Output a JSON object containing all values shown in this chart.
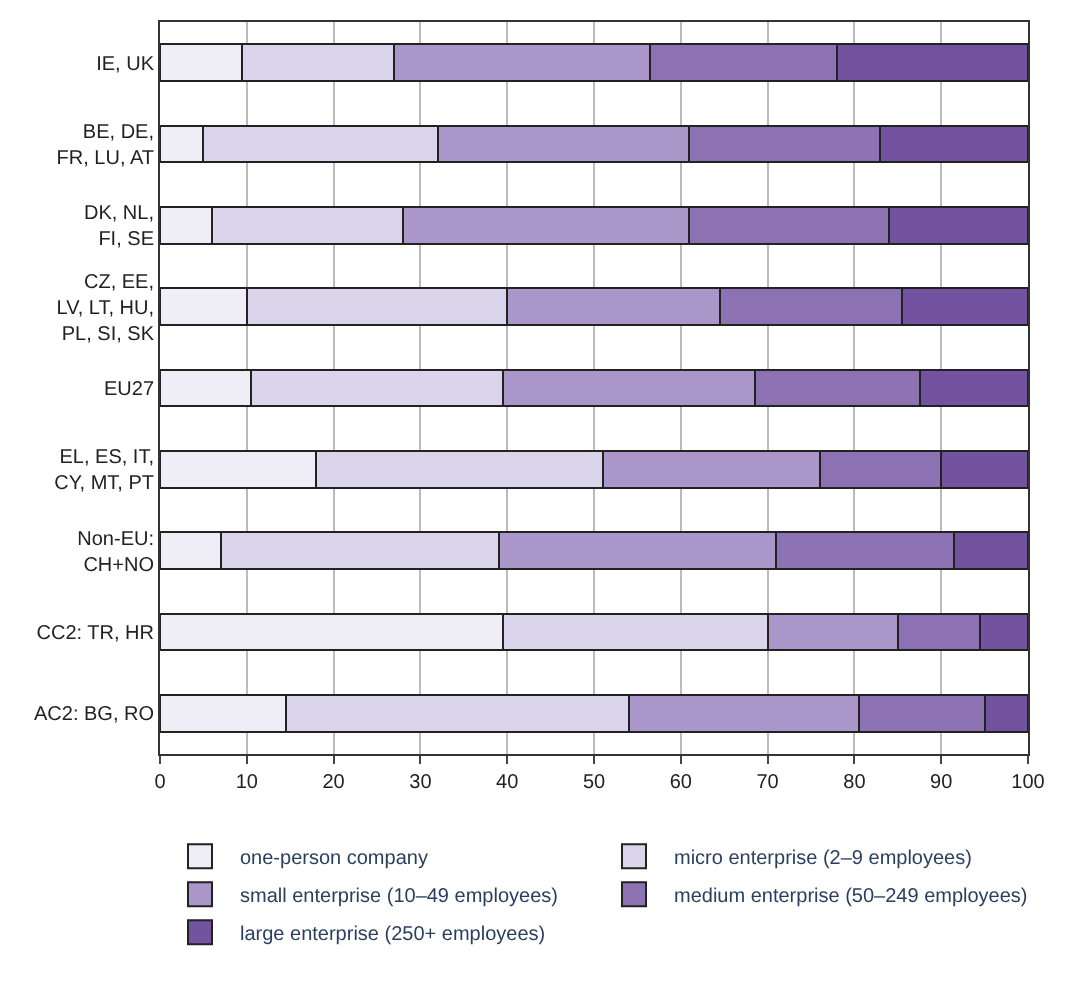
{
  "chart_data": {
    "type": "bar",
    "orientation": "horizontal",
    "stacked": true,
    "categories": [
      "IE, UK",
      "BE, DE,\nFR, LU, AT",
      "DK, NL,\nFI, SE",
      "CZ, EE,\nLV, LT, HU,\nPL, SI, SK",
      "EU27",
      "EL, ES, IT,\nCY, MT, PT",
      "Non-EU:\nCH+NO",
      "CC2: TR, HR",
      "AC2: BG, RO"
    ],
    "series": [
      {
        "name": "one-person company",
        "color": "#efedf5",
        "values": [
          9.5,
          5,
          6,
          10,
          10.5,
          18,
          7,
          39.5,
          14.5
        ]
      },
      {
        "name": "micro enterprise (2–9 employees)",
        "color": "#dad5ea",
        "values": [
          17.5,
          27,
          22,
          30,
          29,
          33,
          32,
          30.5,
          39.5
        ]
      },
      {
        "name": "small enterprise (10–49 employees)",
        "color": "#aa96c9",
        "values": [
          29.5,
          29,
          33,
          24.5,
          29,
          25,
          32,
          15,
          26.5
        ]
      },
      {
        "name": "medium enterprise (50–249 employees)",
        "color": "#8c72b3",
        "values": [
          21.5,
          22,
          23,
          21,
          19,
          14,
          20.5,
          9.5,
          14.5
        ]
      },
      {
        "name": "large enterprise (250+ employees)",
        "color": "#7352a0",
        "values": [
          22,
          17,
          16,
          14.5,
          12.5,
          10,
          8.5,
          5.5,
          5
        ]
      }
    ],
    "xlim": [
      0,
      100
    ],
    "xticks": [
      0,
      10,
      20,
      30,
      40,
      50,
      60,
      70,
      80,
      90,
      100
    ],
    "grid": "x",
    "legend": "bottom"
  }
}
